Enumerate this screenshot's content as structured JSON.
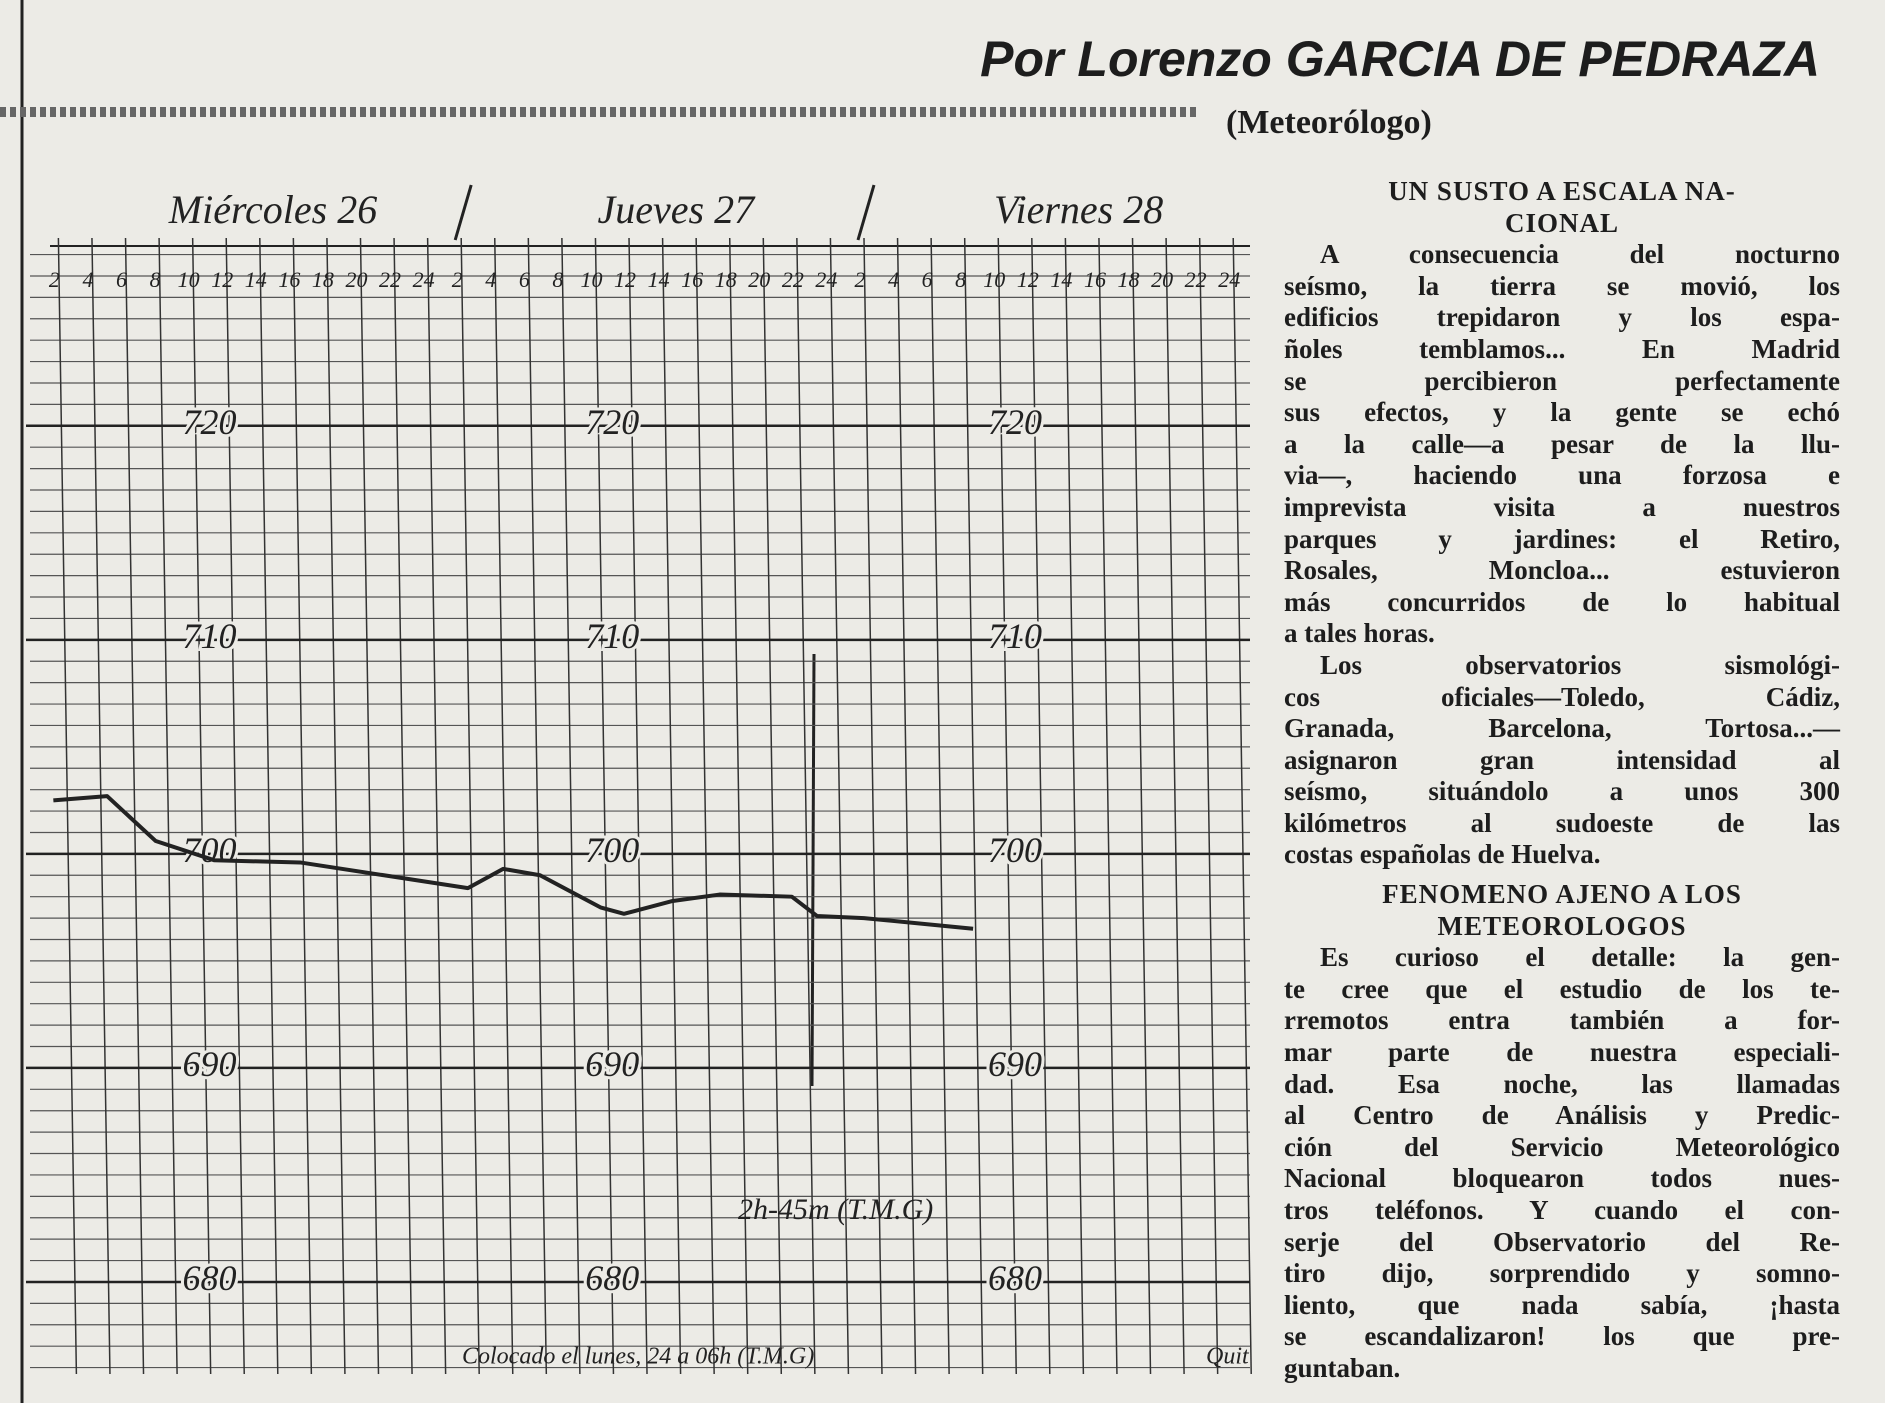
{
  "header": {
    "title": "Por Lorenzo GARCIA DE PEDRAZA",
    "subtitle": "(Meteorólogo)"
  },
  "chart_data": {
    "type": "line",
    "days": [
      "Miércoles 26",
      "Jueves 27",
      "Viernes 28"
    ],
    "x": [
      1.7,
      4.9,
      7.8,
      11.3,
      16.4,
      21.4,
      26.4,
      28.5,
      30.7,
      34.3,
      35.7,
      38.6,
      41.4,
      45.7,
      47.2,
      50.0,
      56.5
    ],
    "values": [
      702.5,
      702.7,
      700.6,
      699.7,
      699.6,
      699.0,
      698.4,
      699.3,
      699.0,
      697.5,
      697.2,
      697.8,
      698.1,
      698.0,
      697.1,
      697.0,
      696.5
    ],
    "color": "#222222",
    "xlim": [
      1.5,
      73
    ],
    "ylim": [
      675.7,
      728.4
    ],
    "xticks": [
      2,
      4,
      6,
      8,
      10,
      12,
      14,
      16,
      18,
      20,
      22,
      24,
      {
        "value": 26,
        "label": "2"
      },
      {
        "value": 28,
        "label": "4"
      },
      {
        "value": 30,
        "label": "6"
      },
      {
        "value": 32,
        "label": "8"
      },
      {
        "value": 34,
        "label": "10"
      },
      {
        "value": 36,
        "label": "12"
      },
      {
        "value": 38,
        "label": "14"
      },
      {
        "value": 40,
        "label": "16"
      },
      {
        "value": 42,
        "label": "18"
      },
      {
        "value": 44,
        "label": "20"
      },
      {
        "value": 46,
        "label": "22"
      },
      {
        "value": 48,
        "label": "24"
      },
      {
        "value": 50,
        "label": "2"
      },
      {
        "value": 52,
        "label": "4"
      },
      {
        "value": 54,
        "label": "6"
      },
      {
        "value": 56,
        "label": "8"
      },
      {
        "value": 58,
        "label": "10"
      },
      {
        "value": 60,
        "label": "12"
      },
      {
        "value": 62,
        "label": "14"
      },
      {
        "value": 64,
        "label": "16"
      },
      {
        "value": 66,
        "label": "18"
      },
      {
        "value": 68,
        "label": "20"
      },
      {
        "value": 70,
        "label": "22"
      },
      {
        "value": 72,
        "label": "24"
      }
    ],
    "yticks": [
      680,
      690,
      700,
      710,
      720
    ],
    "grid": true,
    "annotations": [
      "2h-45m (T.M.G)",
      "Colocado el lunes, 24 a 06h (T.M.G)",
      "Quit"
    ]
  },
  "article": {
    "sections": [
      {
        "heading": [
          "UN SUSTO A ESCALA NA-",
          "CIONAL"
        ],
        "paragraphs": [
          [
            "A consecuencia del nocturno",
            "seísmo, la tierra se movió, los",
            "edificios trepidaron y los espa-",
            "ñoles temblamos... En Madrid",
            "se percibieron perfectamente",
            "sus efectos, y la gente se echó",
            "a la calle—a pesar de la llu-",
            "via—, haciendo una forzosa e",
            "imprevista visita a nuestros",
            "parques y jardines: el Retiro,",
            "Rosales, Moncloa... estuvieron",
            "más concurridos de lo habitual",
            "a tales horas."
          ],
          [
            "Los observatorios sismológi-",
            "cos oficiales—Toledo, Cádiz,",
            "Granada, Barcelona, Tortosa...—",
            "asignaron gran intensidad al",
            "seísmo, situándolo a unos 300",
            "kilómetros al sudoeste de las",
            "costas españolas de Huelva."
          ]
        ]
      },
      {
        "heading": [
          "FENOMENO AJENO A LOS",
          "METEOROLOGOS"
        ],
        "paragraphs": [
          [
            "Es curioso el detalle: la gen-",
            "te cree que el estudio de los te-",
            "rremotos entra también a for-",
            "mar parte de nuestra especiali-",
            "dad. Esa noche, las llamadas",
            "al Centro de Análisis y Predic-",
            "ción del Servicio Meteorológico",
            "Nacional bloquearon todos nues-",
            "tros teléfonos. Y cuando el con-",
            "serje del Observatorio del Re-",
            "tiro dijo, sorprendido y somno-",
            "liento, que nada sabía, ¡hasta",
            "se escandalizaron! los que pre-",
            "guntaban."
          ]
        ]
      }
    ]
  }
}
